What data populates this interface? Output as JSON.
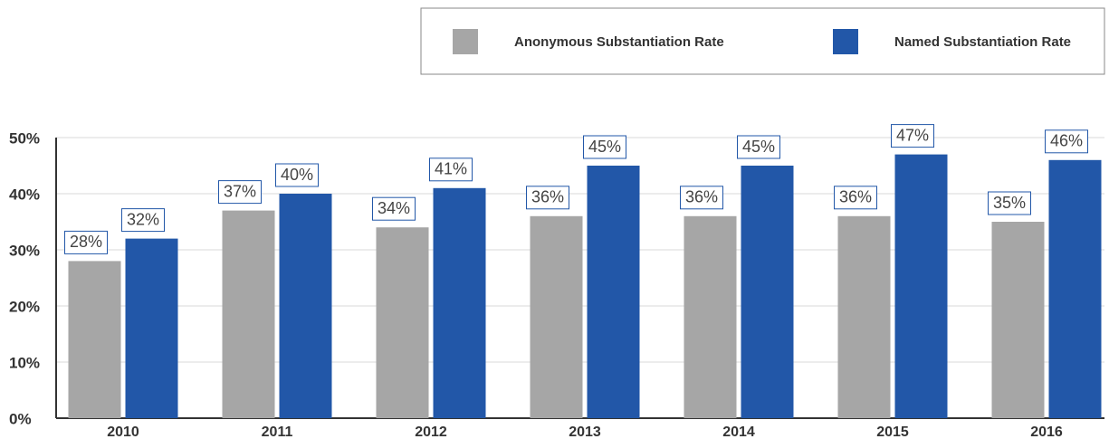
{
  "chart_data": {
    "type": "bar",
    "categories": [
      "2010",
      "2011",
      "2012",
      "2013",
      "2014",
      "2015",
      "2016"
    ],
    "series": [
      {
        "name": "Anonymous Substantiation Rate",
        "color": "#a6a6a6",
        "values": [
          28,
          37,
          34,
          36,
          36,
          36,
          35
        ],
        "value_labels": [
          "28%",
          "37%",
          "34%",
          "36%",
          "36%",
          "36%",
          "35%"
        ]
      },
      {
        "name": "Named Substantiation Rate",
        "color": "#2257a8",
        "values": [
          32,
          40,
          41,
          45,
          45,
          47,
          46
        ],
        "value_labels": [
          "32%",
          "40%",
          "41%",
          "45%",
          "45%",
          "47%",
          "46%"
        ]
      }
    ],
    "ylim": [
      0,
      50
    ],
    "yticks": [
      {
        "value": 0,
        "label": "0%"
      },
      {
        "value": 10,
        "label": "10%"
      },
      {
        "value": 20,
        "label": "20%"
      },
      {
        "value": 30,
        "label": "30%"
      },
      {
        "value": 40,
        "label": "40%"
      },
      {
        "value": 50,
        "label": "50%"
      }
    ],
    "grid": true,
    "legend": "top-right"
  }
}
